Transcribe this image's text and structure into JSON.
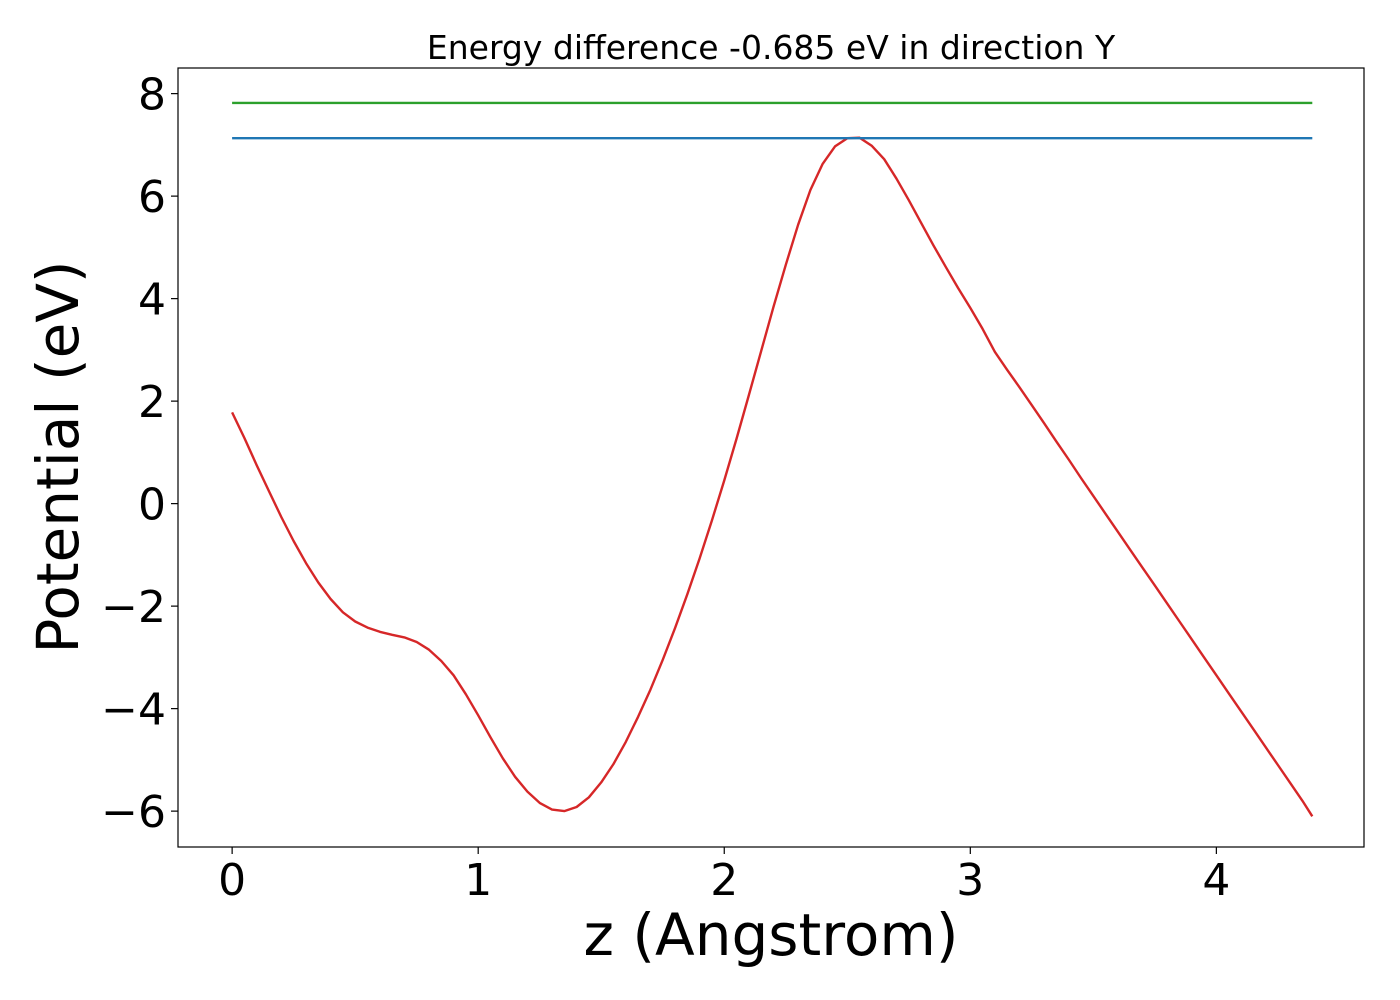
{
  "chart_data": {
    "type": "line",
    "title": "Energy difference -0.685 eV in direction Y",
    "xlabel": "z (Angstrom)",
    "ylabel": "Potential (eV)",
    "xlim": [
      -0.22,
      4.6
    ],
    "ylim": [
      -6.7,
      8.5
    ],
    "xticks": [
      0,
      1,
      2,
      3,
      4
    ],
    "yticks": [
      -6,
      -4,
      -2,
      0,
      2,
      4,
      6,
      8
    ],
    "grid": false,
    "series": [
      {
        "color": "#d62728",
        "x": [
          0.0,
          0.05,
          0.1,
          0.15,
          0.2,
          0.25,
          0.3,
          0.35,
          0.4,
          0.45,
          0.5,
          0.55,
          0.6,
          0.65,
          0.7,
          0.75,
          0.8,
          0.85,
          0.9,
          0.95,
          1.0,
          1.05,
          1.1,
          1.15,
          1.2,
          1.25,
          1.3,
          1.35,
          1.4,
          1.45,
          1.5,
          1.55,
          1.6,
          1.65,
          1.7,
          1.75,
          1.8,
          1.85,
          1.9,
          1.95,
          2.0,
          2.05,
          2.1,
          2.15,
          2.2,
          2.25,
          2.3,
          2.35,
          2.4,
          2.45,
          2.5,
          2.55,
          2.6,
          2.65,
          2.7,
          2.75,
          2.8,
          2.85,
          2.9,
          2.95,
          3.0,
          3.05,
          3.1,
          3.15,
          3.2,
          3.25,
          3.3,
          3.35,
          3.4,
          3.45,
          3.5,
          3.55,
          3.6,
          3.65,
          3.7,
          3.75,
          3.8,
          3.85,
          3.9,
          3.95,
          4.0,
          4.05,
          4.1,
          4.15,
          4.2,
          4.25,
          4.3,
          4.35,
          4.39
        ],
        "values": [
          1.78,
          1.28,
          0.75,
          0.24,
          -0.26,
          -0.73,
          -1.16,
          -1.54,
          -1.86,
          -2.12,
          -2.3,
          -2.42,
          -2.5,
          -2.56,
          -2.61,
          -2.7,
          -2.85,
          -3.07,
          -3.35,
          -3.72,
          -4.13,
          -4.56,
          -4.97,
          -5.33,
          -5.62,
          -5.84,
          -5.97,
          -6.0,
          -5.92,
          -5.73,
          -5.44,
          -5.08,
          -4.65,
          -4.16,
          -3.63,
          -3.05,
          -2.43,
          -1.77,
          -1.07,
          -0.33,
          0.45,
          1.27,
          2.12,
          2.98,
          3.84,
          4.66,
          5.44,
          6.12,
          6.63,
          6.97,
          7.13,
          7.14,
          6.98,
          6.72,
          6.34,
          5.92,
          5.48,
          5.04,
          4.62,
          4.21,
          3.82,
          3.41,
          2.96,
          2.61,
          2.27,
          1.92,
          1.57,
          1.21,
          0.86,
          0.5,
          0.15,
          -0.2,
          -0.55,
          -0.9,
          -1.25,
          -1.6,
          -1.95,
          -2.3,
          -2.65,
          -3.0,
          -3.35,
          -3.7,
          -4.05,
          -4.4,
          -4.75,
          -5.1,
          -5.45,
          -5.8,
          -6.1
        ]
      },
      {
        "color": "#1f77b4",
        "x": [
          0.0,
          4.39
        ],
        "values": [
          7.13,
          7.13
        ]
      },
      {
        "color": "#2ca02c",
        "x": [
          0.0,
          4.39
        ],
        "values": [
          7.82,
          7.82
        ]
      }
    ]
  }
}
